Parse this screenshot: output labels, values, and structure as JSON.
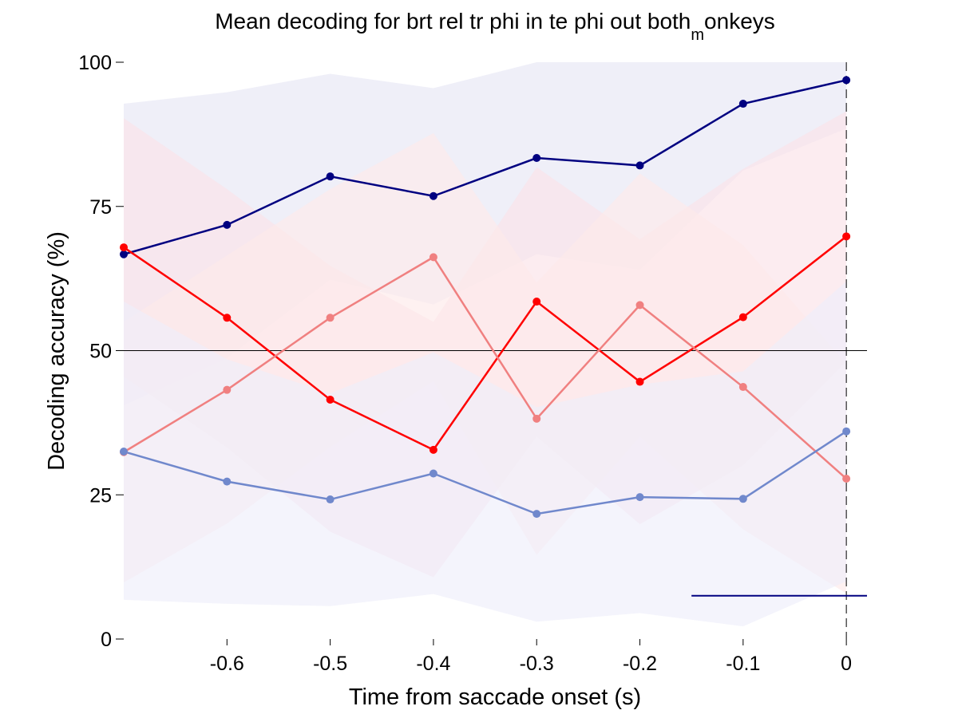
{
  "chart_data": {
    "type": "line",
    "title": "Mean decoding for brt rel tr phi in te phi out  both",
    "title_subscript": "m",
    "title_tail": "onkeys",
    "xlabel": "Time from saccade onset (s)",
    "ylabel": "Decoding accuracy (%)",
    "xlim": [
      -0.7,
      0.02
    ],
    "ylim": [
      0,
      100
    ],
    "x_ticks": [
      -0.6,
      -0.5,
      -0.4,
      -0.3,
      -0.2,
      -0.1,
      0
    ],
    "x_tick_labels": [
      "-0.6",
      "-0.5",
      "-0.4",
      "-0.3",
      "-0.2",
      "-0.1",
      "0"
    ],
    "y_ticks": [
      0,
      25,
      50,
      75,
      100
    ],
    "y_tick_labels": [
      "0",
      "25",
      "50",
      "75",
      "100"
    ],
    "grid": false,
    "chance_level": 50,
    "event_line_x": 0,
    "significance_bar": {
      "x": [
        -0.15,
        0.02
      ],
      "y": 7.5,
      "color": "#000080"
    },
    "x": [
      -0.7,
      -0.6,
      -0.5,
      -0.4,
      -0.3,
      -0.2,
      -0.1,
      0
    ],
    "series": [
      {
        "color": "#000080",
        "band_color": "#e6e6f4",
        "values": [
          66.7,
          71.8,
          80.2,
          76.8,
          83.4,
          82.1,
          92.8,
          96.9
        ],
        "upper": [
          92.8,
          94.8,
          98.0,
          95.5,
          100,
          100,
          100,
          100
        ],
        "lower": [
          40.5,
          48.7,
          62.3,
          58.0,
          66.7,
          64.0,
          81.2,
          88.5
        ]
      },
      {
        "color": "#ff0000",
        "band_color": "#fbe2e8",
        "values": [
          67.9,
          55.7,
          41.5,
          32.8,
          58.5,
          44.6,
          55.8,
          69.8
        ],
        "upper": [
          90.3,
          78.0,
          64.7,
          55.0,
          81.8,
          69.3,
          81.5,
          91.5
        ],
        "lower": [
          45.5,
          33.2,
          18.6,
          10.7,
          35.1,
          19.9,
          30.1,
          48.1
        ]
      },
      {
        "color": "#f08080",
        "band_color": "#fdeaea",
        "values": [
          32.4,
          43.2,
          55.7,
          66.2,
          38.2,
          57.9,
          43.7,
          27.8
        ],
        "upper": [
          55.0,
          66.5,
          78.0,
          87.7,
          61.8,
          80.7,
          68.3,
          47.7
        ],
        "lower": [
          9.8,
          20.0,
          33.3,
          44.7,
          14.6,
          35.1,
          19.0,
          7.9
        ]
      },
      {
        "color": "#7088cc",
        "band_color": "#eeeefa",
        "values": [
          32.5,
          27.3,
          24.2,
          28.7,
          21.7,
          24.6,
          24.3,
          36.0
        ],
        "upper": [
          58.5,
          48.5,
          42.6,
          49.7,
          40.2,
          44.1,
          46.4,
          62.0
        ],
        "lower": [
          6.8,
          6.1,
          5.7,
          7.8,
          3.0,
          4.5,
          2.2,
          10.0
        ]
      }
    ]
  }
}
